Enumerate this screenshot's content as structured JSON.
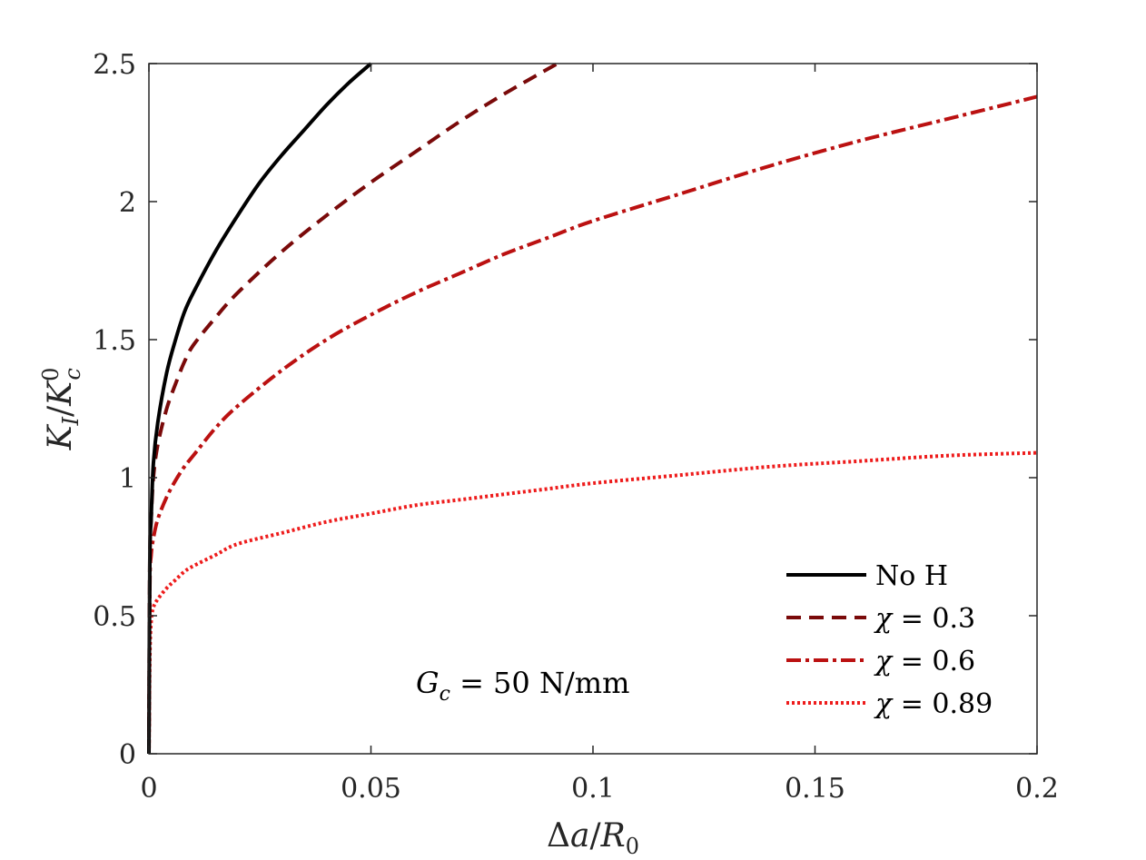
{
  "chart_data": {
    "type": "line",
    "title": "",
    "xlabel": "Δa/R0",
    "xlabel_parts": {
      "delta": "Δ",
      "a": "a",
      "slash": "/",
      "r": "R",
      "sub": "0"
    },
    "ylabel": "KI/Kc0",
    "ylabel_parts": {
      "k1": "K",
      "sub1": "I",
      "slash": "/",
      "k2": "K",
      "sup": "0",
      "sub2": "c"
    },
    "xlim": [
      0,
      0.2
    ],
    "ylim": [
      0,
      2.5
    ],
    "xticks": [
      0,
      0.05,
      0.1,
      0.15,
      0.2
    ],
    "xtick_labels": [
      "0",
      "0.05",
      "0.1",
      "0.15",
      "0.2"
    ],
    "yticks": [
      0,
      0.5,
      1,
      1.5,
      2,
      2.5
    ],
    "ytick_labels": [
      "0",
      "0.5",
      "1",
      "1.5",
      "2",
      "2.5"
    ],
    "annotation": {
      "g": "G",
      "sub": "c",
      "rest": " = 50 N/mm"
    },
    "legend_position": "bottom-right",
    "series": [
      {
        "name": "No H",
        "legend": {
          "label": "No H"
        },
        "color": "#000000",
        "style": "solid",
        "x": [
          0,
          0.0002,
          0.0005,
          0.001,
          0.002,
          0.004,
          0.006,
          0.008,
          0.01,
          0.015,
          0.02,
          0.025,
          0.03,
          0.035,
          0.04,
          0.045,
          0.05
        ],
        "y": [
          0,
          0.7,
          0.85,
          1.05,
          1.2,
          1.38,
          1.5,
          1.6,
          1.67,
          1.82,
          1.95,
          2.07,
          2.17,
          2.26,
          2.35,
          2.43,
          2.5
        ]
      },
      {
        "name": "χ = 0.3",
        "legend": {
          "sym": "χ",
          "rest": " = 0.3"
        },
        "color": "#7a0a0a",
        "style": "dashed",
        "x": [
          0,
          0.0002,
          0.0005,
          0.001,
          0.002,
          0.004,
          0.006,
          0.008,
          0.01,
          0.015,
          0.02,
          0.03,
          0.04,
          0.05,
          0.06,
          0.07,
          0.08,
          0.092
        ],
        "y": [
          0,
          0.7,
          0.85,
          1.0,
          1.12,
          1.25,
          1.34,
          1.42,
          1.48,
          1.58,
          1.67,
          1.82,
          1.95,
          2.07,
          2.18,
          2.29,
          2.39,
          2.5
        ]
      },
      {
        "name": "χ = 0.6",
        "legend": {
          "sym": "χ",
          "rest": " = 0.6"
        },
        "color": "#bb1111",
        "style": "dashdot",
        "x": [
          0,
          0.0002,
          0.0005,
          0.001,
          0.002,
          0.004,
          0.006,
          0.008,
          0.01,
          0.015,
          0.02,
          0.03,
          0.04,
          0.05,
          0.06,
          0.07,
          0.08,
          0.09,
          0.1,
          0.12,
          0.14,
          0.16,
          0.18,
          0.2
        ],
        "y": [
          0,
          0.6,
          0.72,
          0.78,
          0.85,
          0.93,
          0.99,
          1.04,
          1.08,
          1.18,
          1.26,
          1.39,
          1.5,
          1.59,
          1.67,
          1.74,
          1.81,
          1.87,
          1.93,
          2.03,
          2.13,
          2.22,
          2.3,
          2.38
        ]
      },
      {
        "name": "χ = 0.89",
        "legend": {
          "sym": "χ",
          "rest": " = 0.89"
        },
        "color": "#ee1c1c",
        "style": "dotted",
        "x": [
          0,
          0.0002,
          0.0005,
          0.001,
          0.002,
          0.004,
          0.006,
          0.008,
          0.01,
          0.015,
          0.02,
          0.03,
          0.04,
          0.05,
          0.06,
          0.07,
          0.08,
          0.09,
          0.1,
          0.12,
          0.14,
          0.16,
          0.18,
          0.2
        ],
        "y": [
          0,
          0.35,
          0.48,
          0.53,
          0.56,
          0.6,
          0.63,
          0.66,
          0.68,
          0.72,
          0.76,
          0.8,
          0.84,
          0.87,
          0.9,
          0.92,
          0.94,
          0.96,
          0.98,
          1.01,
          1.04,
          1.06,
          1.08,
          1.09
        ]
      }
    ]
  }
}
